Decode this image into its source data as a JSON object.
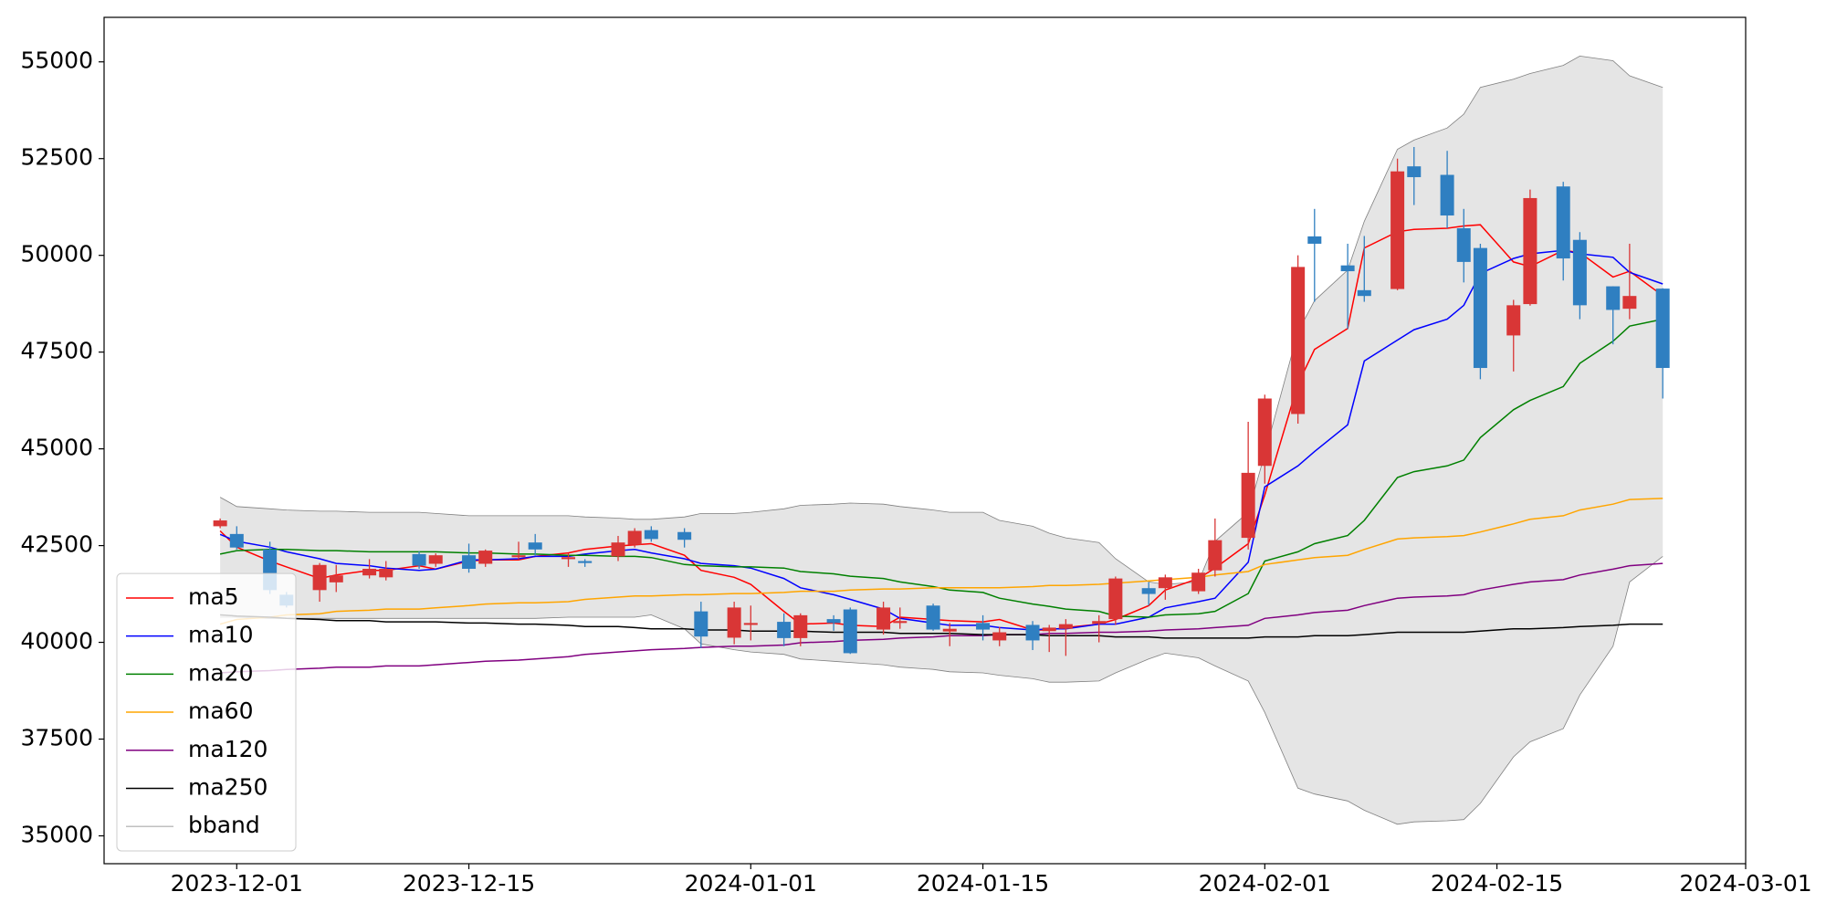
{
  "chart_data": {
    "type": "candlestick",
    "x": [
      "2023-11-30",
      "2023-12-01",
      "2023-12-03",
      "2023-12-04",
      "2023-12-06",
      "2023-12-07",
      "2023-12-09",
      "2023-12-10",
      "2023-12-12",
      "2023-12-13",
      "2023-12-15",
      "2023-12-16",
      "2023-12-18",
      "2023-12-19",
      "2023-12-21",
      "2023-12-22",
      "2023-12-24",
      "2023-12-25",
      "2023-12-26",
      "2023-12-28",
      "2023-12-29",
      "2023-12-31",
      "2024-01-01",
      "2024-01-03",
      "2024-01-04",
      "2024-01-06",
      "2024-01-07",
      "2024-01-09",
      "2024-01-10",
      "2024-01-12",
      "2024-01-13",
      "2024-01-15",
      "2024-01-16",
      "2024-01-18",
      "2024-01-19",
      "2024-01-20",
      "2024-01-22",
      "2024-01-23",
      "2024-01-25",
      "2024-01-26",
      "2024-01-28",
      "2024-01-29",
      "2024-01-31",
      "2024-02-01",
      "2024-02-03",
      "2024-02-04",
      "2024-02-06",
      "2024-02-07",
      "2024-02-09",
      "2024-02-10",
      "2024-02-12",
      "2024-02-13",
      "2024-02-14",
      "2024-02-16",
      "2024-02-17",
      "2024-02-19",
      "2024-02-20",
      "2024-02-22",
      "2024-02-23",
      "2024-02-25"
    ],
    "open": [
      43000,
      42800,
      42400,
      41230,
      41350,
      41550,
      41730,
      41680,
      42280,
      42030,
      42250,
      42030,
      42200,
      42580,
      42150,
      42100,
      42220,
      42520,
      42900,
      42850,
      40800,
      40120,
      40450,
      40530,
      40110,
      40600,
      40850,
      40330,
      40500,
      40950,
      40280,
      40500,
      40050,
      40450,
      40290,
      40350,
      40480,
      40600,
      41400,
      41400,
      41320,
      41860,
      42700,
      44560,
      45900,
      50490,
      49740,
      49100,
      49130,
      52300,
      52080,
      50700,
      50190,
      47930,
      48740,
      51780,
      50400,
      49200,
      48620,
      49140
    ],
    "high": [
      43200,
      43000,
      42600,
      41300,
      42050,
      42000,
      42150,
      42100,
      42350,
      42300,
      42550,
      42400,
      42600,
      42800,
      42300,
      42150,
      42750,
      42950,
      43000,
      42950,
      41050,
      41050,
      40950,
      40750,
      40750,
      40700,
      40900,
      41050,
      40900,
      41000,
      40500,
      40700,
      40400,
      40550,
      40450,
      40600,
      40700,
      41700,
      41550,
      41750,
      41900,
      43200,
      45700,
      46400,
      50000,
      51200,
      50300,
      50500,
      52500,
      52800,
      52700,
      51200,
      50300,
      48850,
      51700,
      51900,
      50600,
      49200,
      50300,
      49150
    ],
    "low": [
      42950,
      42400,
      41250,
      40900,
      41050,
      41300,
      41650,
      41600,
      41900,
      41950,
      41800,
      41950,
      42150,
      42250,
      41950,
      41950,
      42100,
      42450,
      42600,
      42450,
      39850,
      39950,
      40050,
      39900,
      39900,
      40300,
      39700,
      40200,
      40350,
      40300,
      39900,
      40050,
      39900,
      39800,
      39750,
      39650,
      40000,
      40450,
      40950,
      41100,
      41250,
      41700,
      42400,
      44100,
      45650,
      48800,
      48100,
      48800,
      49100,
      51300,
      50700,
      49300,
      46800,
      47000,
      48700,
      49350,
      48350,
      47700,
      48350,
      46300
    ],
    "close": [
      43150,
      42450,
      41350,
      40950,
      42000,
      41730,
      41900,
      41900,
      41980,
      42250,
      41900,
      42370,
      42250,
      42400,
      42200,
      42050,
      42580,
      42880,
      42670,
      42650,
      40150,
      40900,
      40500,
      40110,
      40700,
      40500,
      39720,
      40900,
      40550,
      40330,
      40350,
      40330,
      40260,
      40050,
      40380,
      40470,
      40550,
      41650,
      41250,
      41680,
      41800,
      42640,
      44380,
      46300,
      49700,
      50300,
      49590,
      48950,
      52170,
      52020,
      51030,
      49830,
      47090,
      48710,
      51480,
      49920,
      48710,
      48590,
      48950,
      47090
    ],
    "up_color": "#d93636",
    "down_color": "#2f7fc1",
    "series": [
      {
        "name": "ma5",
        "color": "red",
        "values": [
          42880,
          42460,
          42100,
          41950,
          41650,
          41740,
          41860,
          41860,
          41980,
          41890,
          42100,
          42130,
          42130,
          42220,
          42310,
          42400,
          42490,
          42520,
          42550,
          42250,
          41860,
          41680,
          41500,
          40800,
          40470,
          40500,
          40440,
          40410,
          40650,
          40590,
          40560,
          40530,
          40590,
          40320,
          40320,
          40380,
          40470,
          40590,
          40950,
          41350,
          41650,
          41920,
          42550,
          43810,
          46670,
          47570,
          48110,
          50190,
          50610,
          50670,
          50700,
          50760,
          50790,
          49830,
          49710,
          50130,
          50070,
          49440,
          49590,
          48960
        ]
      },
      {
        "name": "ma10",
        "color": "blue",
        "values": [
          42790,
          42610,
          42460,
          42340,
          42160,
          42040,
          41980,
          41920,
          41860,
          41890,
          42130,
          42130,
          42160,
          42220,
          42220,
          42280,
          42370,
          42400,
          42310,
          42160,
          42040,
          41980,
          41920,
          41650,
          41410,
          41230,
          41110,
          40860,
          40620,
          40500,
          40440,
          40440,
          40380,
          40320,
          40350,
          40350,
          40470,
          40470,
          40650,
          40890,
          41050,
          41140,
          42070,
          44020,
          44560,
          44930,
          45620,
          47270,
          47810,
          48080,
          48350,
          48710,
          49530,
          49920,
          50040,
          50130,
          50040,
          49950,
          49560,
          49260
        ]
      },
      {
        "name": "ma20",
        "color": "green",
        "values": [
          42280,
          42370,
          42400,
          42400,
          42370,
          42370,
          42340,
          42340,
          42340,
          42340,
          42310,
          42310,
          42280,
          42280,
          42250,
          42250,
          42220,
          42220,
          42190,
          42010,
          41980,
          41950,
          41950,
          41920,
          41830,
          41770,
          41710,
          41650,
          41560,
          41440,
          41350,
          41290,
          41140,
          40990,
          40930,
          40860,
          40800,
          40680,
          40650,
          40710,
          40740,
          40800,
          41260,
          42100,
          42340,
          42550,
          42760,
          43150,
          44260,
          44410,
          44560,
          44710,
          45290,
          46010,
          46250,
          46610,
          47210,
          47780,
          48170,
          48350
        ]
      },
      {
        "name": "ma60",
        "color": "orange",
        "values": [
          40470,
          40590,
          40650,
          40710,
          40740,
          40800,
          40830,
          40860,
          40860,
          40890,
          40950,
          40990,
          41020,
          41020,
          41050,
          41110,
          41170,
          41200,
          41200,
          41230,
          41230,
          41260,
          41260,
          41290,
          41320,
          41320,
          41350,
          41380,
          41380,
          41410,
          41410,
          41410,
          41410,
          41440,
          41470,
          41470,
          41500,
          41530,
          41590,
          41620,
          41680,
          41740,
          41830,
          42010,
          42130,
          42190,
          42250,
          42400,
          42670,
          42700,
          42730,
          42760,
          42850,
          43060,
          43180,
          43270,
          43420,
          43570,
          43690,
          43720
        ]
      },
      {
        "name": "ma120",
        "color": "purple",
        "values": [
          39210,
          39240,
          39270,
          39300,
          39330,
          39360,
          39360,
          39390,
          39390,
          39420,
          39480,
          39510,
          39540,
          39570,
          39630,
          39690,
          39750,
          39780,
          39810,
          39840,
          39870,
          39900,
          39900,
          39930,
          39990,
          40020,
          40050,
          40080,
          40110,
          40140,
          40170,
          40170,
          40200,
          40200,
          40230,
          40230,
          40260,
          40260,
          40290,
          40320,
          40350,
          40380,
          40440,
          40620,
          40710,
          40770,
          40830,
          40950,
          41140,
          41170,
          41200,
          41230,
          41350,
          41500,
          41560,
          41620,
          41740,
          41890,
          41980,
          42040
        ]
      },
      {
        "name": "ma250",
        "color": "black",
        "values": [
          40710,
          40680,
          40650,
          40620,
          40590,
          40560,
          40560,
          40530,
          40530,
          40530,
          40500,
          40500,
          40470,
          40470,
          40440,
          40410,
          40410,
          40380,
          40350,
          40350,
          40320,
          40320,
          40290,
          40290,
          40290,
          40260,
          40260,
          40260,
          40230,
          40230,
          40230,
          40200,
          40200,
          40200,
          40170,
          40170,
          40170,
          40140,
          40140,
          40110,
          40110,
          40110,
          40110,
          40140,
          40140,
          40170,
          40170,
          40200,
          40260,
          40260,
          40260,
          40260,
          40290,
          40350,
          40350,
          40380,
          40410,
          40440,
          40470,
          40470
        ]
      }
    ],
    "band": {
      "name": "bband",
      "color": "gray",
      "fill": "#e5e5e5",
      "upper": [
        43750,
        43510,
        43450,
        43420,
        43390,
        43390,
        43360,
        43360,
        43360,
        43330,
        43270,
        43270,
        43270,
        43270,
        43270,
        43240,
        43210,
        43180,
        43180,
        43240,
        43330,
        43330,
        43360,
        43450,
        43540,
        43570,
        43600,
        43570,
        43510,
        43420,
        43360,
        43360,
        43150,
        43000,
        42820,
        42700,
        42580,
        42160,
        41560,
        41500,
        41560,
        42610,
        43360,
        44870,
        48020,
        48830,
        49620,
        50880,
        52740,
        52980,
        53290,
        53650,
        54340,
        54550,
        54700,
        54910,
        55150,
        55030,
        54640,
        54340
      ],
      "lower": [
        40650,
        40650,
        40620,
        40620,
        40620,
        40620,
        40620,
        40620,
        40620,
        40620,
        40620,
        40620,
        40620,
        40620,
        40650,
        40650,
        40650,
        40650,
        40710,
        40350,
        39960,
        39810,
        39750,
        39690,
        39570,
        39510,
        39480,
        39420,
        39360,
        39300,
        39240,
        39210,
        39150,
        39060,
        38970,
        38970,
        39000,
        39210,
        39570,
        39720,
        39600,
        39390,
        39000,
        38190,
        36230,
        36080,
        35900,
        35660,
        35300,
        35360,
        35390,
        35420,
        35840,
        37040,
        37430,
        37770,
        38640,
        39900,
        41560,
        42220
      ]
    },
    "xlim": [
      "2023-11-23",
      "2024-03-01"
    ],
    "xticks": [
      "2023-12-01",
      "2023-12-15",
      "2024-01-01",
      "2024-01-15",
      "2024-02-01",
      "2024-02-15",
      "2024-03-01"
    ],
    "ylim": [
      34280,
      56150
    ],
    "yticks": [
      35000,
      37500,
      40000,
      42500,
      45000,
      47500,
      50000,
      52500,
      55000
    ],
    "legend": "lower left"
  }
}
